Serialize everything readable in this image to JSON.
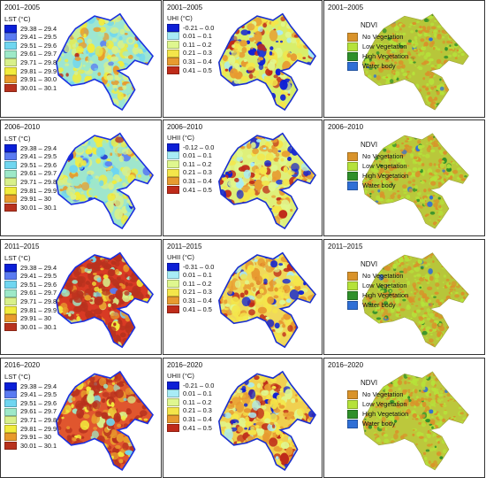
{
  "rows": [
    {
      "period": "2001–2005",
      "lst": {
        "title": "LST (°C)",
        "items": [
          "29.38 – 29.4",
          "29.41 – 29.5",
          "29.51 – 29.6",
          "29.61 – 29.7",
          "29.71 – 29.8",
          "29.81 – 29.9",
          "29.91 – 30.0",
          "30.01 – 30.1"
        ]
      },
      "uhi": {
        "title": "UHI (°C)",
        "items": [
          "-0.21 – 0.0",
          "0.01 – 0.1",
          "0.11 – 0.2",
          "0.21 – 0.3",
          "0.31 – 0.4",
          "0.41 – 0.5"
        ]
      },
      "ndvi": {
        "title": "NDVI",
        "items": [
          "No Vegetation",
          "Low Vegetation",
          "High Vegetation",
          "Water body"
        ]
      }
    },
    {
      "period": "2006–2010",
      "lst": {
        "title": "LST (°C)",
        "items": [
          "29.38 – 29.4",
          "29.41 – 29.5",
          "29.51 – 29.6",
          "29.61 – 29.7",
          "29.71 – 29.8",
          "29.81 – 29.9",
          "29.91 – 30",
          "30.01 – 30.1"
        ]
      },
      "uhi": {
        "title": "UHII (°C)",
        "items": [
          "-0.12 – 0.0",
          "0.01 – 0.1",
          "0.11 – 0.2",
          "0.21 – 0.3",
          "0.31 – 0.4",
          "0.41 – 0.5"
        ]
      },
      "ndvi": {
        "title": "NDVI",
        "items": [
          "No Vegetation",
          "Low Vegetation",
          "High Vegetation",
          "Water body"
        ]
      }
    },
    {
      "period": "2011–2015",
      "lst": {
        "title": "LST (°C)",
        "items": [
          "29.38 – 29.4",
          "29.41 – 29.5",
          "29.51 – 29.6",
          "29.61 – 29.7",
          "29.71 – 29.8",
          "29.81 – 29.9",
          "29.91 – 30",
          "30.01 – 30.1"
        ]
      },
      "uhi": {
        "title": "UHII (°C)",
        "items": [
          "-0.31 – 0.0",
          "0.01 – 0.1",
          "0.11 – 0.2",
          "0.21 – 0.3",
          "0.31 – 0.4",
          "0.41 – 0.5"
        ]
      },
      "ndvi": {
        "title": "NDVI",
        "items": [
          "No Vegetation",
          "Low Vegetation",
          "High Vegetation",
          "Water body"
        ]
      }
    },
    {
      "period": "2016–2020",
      "lst": {
        "title": "LST (°C)",
        "items": [
          "29.38 – 29.4",
          "29.41 – 29.5",
          "29.51 – 29.6",
          "29.61 – 29.7",
          "29.71 – 29.8",
          "29.81 – 29.9",
          "29.91 – 30",
          "30.01 – 30.1"
        ]
      },
      "uhi": {
        "title": "UHII (°C)",
        "items": [
          "-0.21 – 0.0",
          "0.01 – 0.1",
          "0.11 – 0.2",
          "0.21 – 0.3",
          "0.31 – 0.4",
          "0.41 – 0.5"
        ]
      },
      "ndvi": {
        "title": "NDVI",
        "items": [
          "No Vegetation",
          "Low Vegetation",
          "High Vegetation",
          "Water body"
        ]
      }
    }
  ],
  "palettes": {
    "lst": [
      "#0a1fd8",
      "#5a7bf2",
      "#6fd6f0",
      "#9de9c8",
      "#d8f08a",
      "#f2ec3c",
      "#e89a2c",
      "#b8321e"
    ],
    "uhi": [
      "#0d1fd6",
      "#a8ecf6",
      "#dff78f",
      "#f4e64a",
      "#e79a30",
      "#bf2b1a"
    ],
    "ndvi": [
      "#d9932a",
      "#b5e23a",
      "#2f8f2a",
      "#2f6fd6"
    ]
  },
  "map_mix": {
    "lst": [
      {
        "base": "#9de6d2",
        "w": [
          0.02,
          0.04,
          0.12,
          0.22,
          0.25,
          0.2,
          0.12,
          0.03
        ]
      },
      {
        "base": "#9fe6cc",
        "w": [
          0.02,
          0.05,
          0.14,
          0.22,
          0.26,
          0.18,
          0.1,
          0.03
        ]
      },
      {
        "base": "#d83a24",
        "w": [
          0.0,
          0.01,
          0.03,
          0.05,
          0.07,
          0.1,
          0.14,
          0.6
        ]
      },
      {
        "base": "#e0562e",
        "w": [
          0.0,
          0.01,
          0.03,
          0.05,
          0.08,
          0.12,
          0.16,
          0.55
        ]
      }
    ],
    "uhi": [
      {
        "base": "#d8ee6a",
        "w": [
          0.12,
          0.06,
          0.22,
          0.28,
          0.22,
          0.1
        ]
      },
      {
        "base": "#dff07a",
        "w": [
          0.1,
          0.06,
          0.24,
          0.28,
          0.22,
          0.1
        ]
      },
      {
        "base": "#f0d95a",
        "w": [
          0.08,
          0.05,
          0.12,
          0.28,
          0.32,
          0.15
        ]
      },
      {
        "base": "#f0d050",
        "w": [
          0.1,
          0.05,
          0.12,
          0.25,
          0.32,
          0.16
        ]
      }
    ],
    "ndvi": [
      {
        "base": "#b7c63a",
        "w": [
          0.45,
          0.45,
          0.08,
          0.02
        ]
      },
      {
        "base": "#b9c83b",
        "w": [
          0.45,
          0.45,
          0.08,
          0.02
        ]
      },
      {
        "base": "#b7c63a",
        "w": [
          0.45,
          0.45,
          0.08,
          0.02
        ]
      },
      {
        "base": "#bcc83c",
        "w": [
          0.45,
          0.45,
          0.08,
          0.02
        ]
      }
    ]
  }
}
